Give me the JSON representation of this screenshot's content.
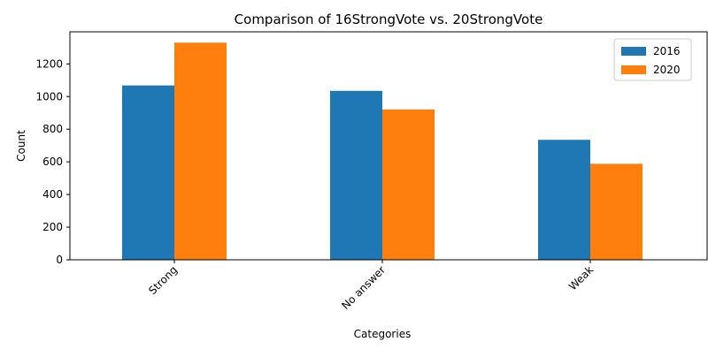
{
  "chart_data": {
    "type": "bar",
    "title": "Comparison of 16StrongVote vs. 20StrongVote",
    "xlabel": "Categories",
    "ylabel": "Count",
    "categories": [
      "Strong",
      "No answer",
      "Weak"
    ],
    "series": [
      {
        "name": "2016",
        "color": "#1f77b4",
        "values": [
          1068,
          1035,
          735
        ]
      },
      {
        "name": "2020",
        "color": "#ff7f0e",
        "values": [
          1330,
          921,
          588
        ]
      }
    ],
    "ylim": [
      0,
      1396.5
    ],
    "yticks": [
      0,
      200,
      400,
      600,
      800,
      1000,
      1200
    ],
    "grid": false,
    "legend_position": "top-right",
    "xtick_rotation": 45
  }
}
